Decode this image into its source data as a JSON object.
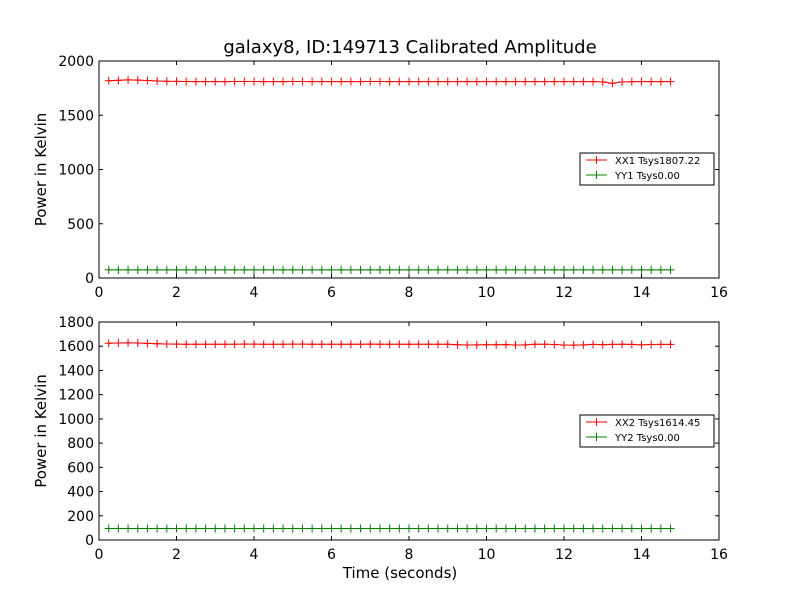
{
  "figure": {
    "title": "galaxy8, ID:149713 Calibrated Amplitude"
  },
  "chart_data": [
    {
      "type": "line",
      "title": "galaxy8, ID:149713 Calibrated Amplitude",
      "xlabel": "",
      "ylabel": "Power in Kelvin",
      "xlim": [
        0,
        16
      ],
      "ylim": [
        0,
        2000
      ],
      "xticks": [
        0,
        2,
        4,
        6,
        8,
        10,
        12,
        14,
        16
      ],
      "yticks": [
        0,
        500,
        1000,
        1500,
        2000
      ],
      "grid": false,
      "legend_position": "right",
      "series": [
        {
          "name": "XX1 Tsys1807.22",
          "color": "#ff0000",
          "marker": "plus",
          "x": [
            0.25,
            0.5,
            0.75,
            1.0,
            1.25,
            1.5,
            1.75,
            2.0,
            2.25,
            2.5,
            2.75,
            3.0,
            3.25,
            3.5,
            3.75,
            4.0,
            4.25,
            4.5,
            4.75,
            5.0,
            5.25,
            5.5,
            5.75,
            6.0,
            6.25,
            6.5,
            6.75,
            7.0,
            7.25,
            7.5,
            7.75,
            8.0,
            8.25,
            8.5,
            8.75,
            9.0,
            9.25,
            9.5,
            9.75,
            10.0,
            10.25,
            10.5,
            10.75,
            11.0,
            11.25,
            11.5,
            11.75,
            12.0,
            12.25,
            12.5,
            12.75,
            13.0,
            13.25,
            13.5,
            13.75,
            14.0,
            14.25,
            14.5,
            14.75
          ],
          "y": [
            1818,
            1822,
            1826,
            1824,
            1820,
            1816,
            1813,
            1812,
            1811,
            1810,
            1810,
            1810,
            1810,
            1811,
            1811,
            1811,
            1810,
            1810,
            1810,
            1811,
            1811,
            1810,
            1810,
            1810,
            1810,
            1810,
            1810,
            1811,
            1811,
            1810,
            1810,
            1810,
            1810,
            1810,
            1810,
            1810,
            1810,
            1810,
            1810,
            1810,
            1810,
            1810,
            1810,
            1810,
            1810,
            1810,
            1810,
            1810,
            1810,
            1810,
            1810,
            1806,
            1795,
            1807,
            1809,
            1810,
            1810,
            1810,
            1810
          ]
        },
        {
          "name": "YY1 Tsys0.00",
          "color": "#008000",
          "marker": "plus",
          "x": [
            0.25,
            0.5,
            0.75,
            1.0,
            1.25,
            1.5,
            1.75,
            2.0,
            2.25,
            2.5,
            2.75,
            3.0,
            3.25,
            3.5,
            3.75,
            4.0,
            4.25,
            4.5,
            4.75,
            5.0,
            5.25,
            5.5,
            5.75,
            6.0,
            6.25,
            6.5,
            6.75,
            7.0,
            7.25,
            7.5,
            7.75,
            8.0,
            8.25,
            8.5,
            8.75,
            9.0,
            9.25,
            9.5,
            9.75,
            10.0,
            10.25,
            10.5,
            10.75,
            11.0,
            11.25,
            11.5,
            11.75,
            12.0,
            12.25,
            12.5,
            12.75,
            13.0,
            13.25,
            13.5,
            13.75,
            14.0,
            14.25,
            14.5,
            14.75
          ],
          "y": [
            75,
            75,
            75,
            75,
            75,
            75,
            75,
            75,
            75,
            75,
            75,
            75,
            75,
            75,
            75,
            75,
            75,
            75,
            75,
            75,
            75,
            75,
            75,
            75,
            75,
            75,
            75,
            75,
            75,
            75,
            75,
            75,
            75,
            75,
            75,
            75,
            75,
            75,
            75,
            75,
            75,
            75,
            75,
            75,
            75,
            75,
            75,
            75,
            75,
            75,
            75,
            75,
            75,
            75,
            75,
            75,
            75,
            75,
            75
          ]
        }
      ]
    },
    {
      "type": "line",
      "title": "",
      "xlabel": "Time (seconds)",
      "ylabel": "Power in Kelvin",
      "xlim": [
        0,
        16
      ],
      "ylim": [
        0,
        1800
      ],
      "xticks": [
        0,
        2,
        4,
        6,
        8,
        10,
        12,
        14,
        16
      ],
      "yticks": [
        0,
        200,
        400,
        600,
        800,
        1000,
        1200,
        1400,
        1600,
        1800
      ],
      "grid": false,
      "legend_position": "right",
      "series": [
        {
          "name": "XX2 Tsys1614.45",
          "color": "#ff0000",
          "marker": "plus",
          "x": [
            0.25,
            0.5,
            0.75,
            1.0,
            1.25,
            1.5,
            1.75,
            2.0,
            2.25,
            2.5,
            2.75,
            3.0,
            3.25,
            3.5,
            3.75,
            4.0,
            4.25,
            4.5,
            4.75,
            5.0,
            5.25,
            5.5,
            5.75,
            6.0,
            6.25,
            6.5,
            6.75,
            7.0,
            7.25,
            7.5,
            7.75,
            8.0,
            8.25,
            8.5,
            8.75,
            9.0,
            9.25,
            9.5,
            9.75,
            10.0,
            10.25,
            10.5,
            10.75,
            11.0,
            11.25,
            11.5,
            11.75,
            12.0,
            12.25,
            12.5,
            12.75,
            13.0,
            13.25,
            13.5,
            13.75,
            14.0,
            14.25,
            14.5,
            14.75
          ],
          "y": [
            1625,
            1627,
            1628,
            1627,
            1624,
            1620,
            1618,
            1617,
            1616,
            1616,
            1616,
            1616,
            1616,
            1616,
            1617,
            1617,
            1616,
            1616,
            1616,
            1617,
            1617,
            1616,
            1616,
            1616,
            1616,
            1616,
            1616,
            1617,
            1616,
            1616,
            1616,
            1616,
            1616,
            1616,
            1616,
            1616,
            1612,
            1610,
            1611,
            1612,
            1612,
            1613,
            1610,
            1611,
            1616,
            1616,
            1614,
            1610,
            1609,
            1611,
            1615,
            1612,
            1615,
            1616,
            1615,
            1611,
            1614,
            1615,
            1615
          ]
        },
        {
          "name": "YY2 Tsys0.00",
          "color": "#008000",
          "marker": "plus",
          "x": [
            0.25,
            0.5,
            0.75,
            1.0,
            1.25,
            1.5,
            1.75,
            2.0,
            2.25,
            2.5,
            2.75,
            3.0,
            3.25,
            3.5,
            3.75,
            4.0,
            4.25,
            4.5,
            4.75,
            5.0,
            5.25,
            5.5,
            5.75,
            6.0,
            6.25,
            6.5,
            6.75,
            7.0,
            7.25,
            7.5,
            7.75,
            8.0,
            8.25,
            8.5,
            8.75,
            9.0,
            9.25,
            9.5,
            9.75,
            10.0,
            10.25,
            10.5,
            10.75,
            11.0,
            11.25,
            11.5,
            11.75,
            12.0,
            12.25,
            12.5,
            12.75,
            13.0,
            13.25,
            13.5,
            13.75,
            14.0,
            14.25,
            14.5,
            14.75
          ],
          "y": [
            95,
            95,
            95,
            95,
            95,
            95,
            95,
            95,
            95,
            95,
            95,
            95,
            95,
            95,
            95,
            95,
            95,
            95,
            95,
            95,
            95,
            95,
            95,
            95,
            95,
            95,
            95,
            95,
            95,
            95,
            95,
            95,
            95,
            95,
            95,
            95,
            95,
            95,
            95,
            95,
            95,
            95,
            95,
            95,
            95,
            95,
            95,
            95,
            95,
            95,
            95,
            95,
            95,
            95,
            95,
            95,
            95,
            95,
            95
          ]
        }
      ]
    }
  ]
}
